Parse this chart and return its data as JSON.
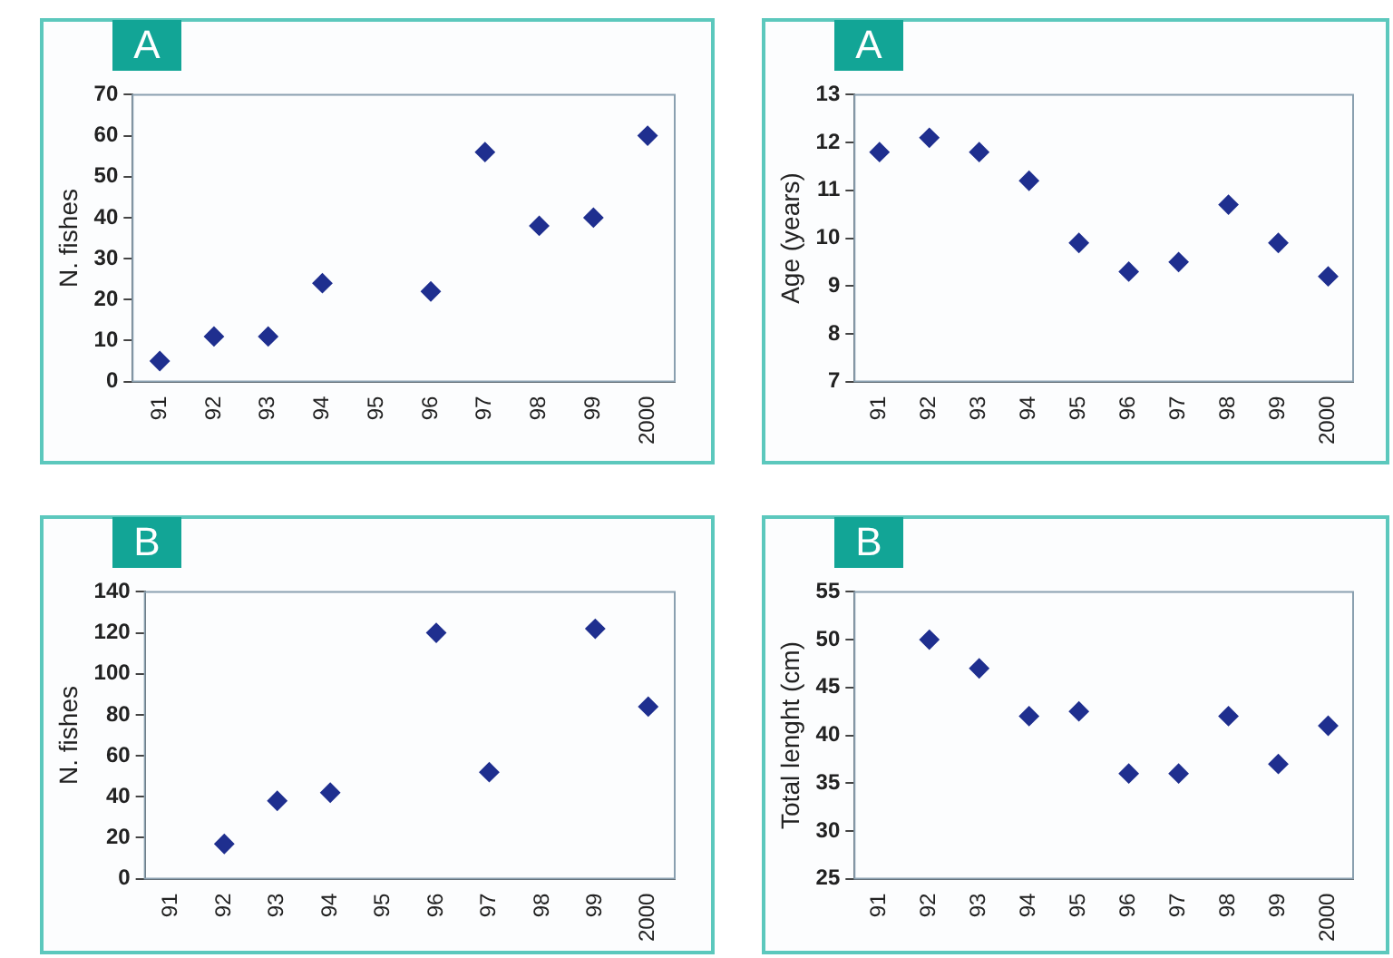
{
  "chart_data": [
    {
      "type": "scatter",
      "title": "A",
      "ylabel": "N. fishes",
      "categories": [
        "91",
        "92",
        "93",
        "94",
        "95",
        "96",
        "97",
        "98",
        "99",
        "2000"
      ],
      "values": [
        5,
        11,
        11,
        24,
        null,
        22,
        56,
        38,
        40,
        60
      ],
      "color": "#1f2f8f",
      "marker": "diamond",
      "ylim": [
        0,
        70
      ],
      "yticks": [
        0,
        10,
        20,
        30,
        40,
        50,
        60,
        70
      ],
      "grid": false
    },
    {
      "type": "scatter",
      "title": "A",
      "ylabel": "Age (years)",
      "categories": [
        "91",
        "92",
        "93",
        "94",
        "95",
        "96",
        "97",
        "98",
        "99",
        "2000"
      ],
      "values": [
        11.8,
        12.1,
        11.8,
        11.2,
        9.9,
        9.3,
        9.5,
        10.7,
        9.9,
        9.2
      ],
      "color": "#1f2f8f",
      "marker": "diamond",
      "ylim": [
        7,
        13
      ],
      "yticks": [
        7,
        8,
        9,
        10,
        11,
        12,
        13
      ],
      "grid": false
    },
    {
      "type": "scatter",
      "title": "B",
      "ylabel": "N. fishes",
      "categories": [
        "91",
        "92",
        "93",
        "94",
        "95",
        "96",
        "97",
        "98",
        "99",
        "2000"
      ],
      "values": [
        null,
        17,
        38,
        42,
        null,
        120,
        52,
        null,
        122,
        84
      ],
      "color": "#1f2f8f",
      "marker": "diamond",
      "ylim": [
        0,
        140
      ],
      "yticks": [
        0,
        20,
        40,
        60,
        80,
        100,
        120,
        140
      ],
      "grid": false
    },
    {
      "type": "scatter",
      "title": "B",
      "ylabel": "Total lenght (cm)",
      "categories": [
        "91",
        "92",
        "93",
        "94",
        "95",
        "96",
        "97",
        "98",
        "99",
        "2000"
      ],
      "values": [
        null,
        50,
        47,
        42,
        42.5,
        36,
        36,
        42,
        37,
        41
      ],
      "color": "#1f2f8f",
      "marker": "diamond",
      "ylim": [
        25,
        55
      ],
      "yticks": [
        25,
        30,
        35,
        40,
        45,
        50,
        55
      ],
      "grid": false
    }
  ]
}
